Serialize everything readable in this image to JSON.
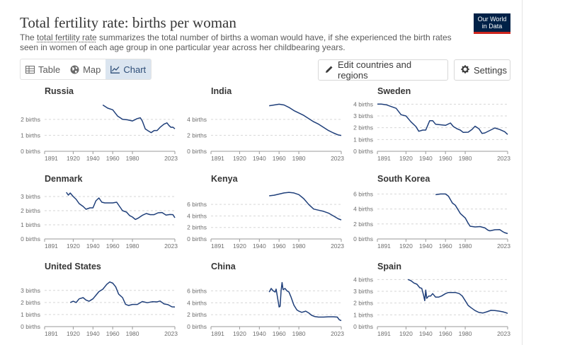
{
  "header": {
    "title": "Total fertility rate: births per woman",
    "subtitle_prefix": "The ",
    "subtitle_link": "total fertility rate",
    "subtitle_rest": " summarizes the total number of births a woman would have, if she experienced the birth rates seen in women of each age group in one particular year across her childbearing years.",
    "logo_line1": "Our World",
    "logo_line2": "in Data"
  },
  "toolbar": {
    "tabs": [
      {
        "label": "Table",
        "icon": "table-icon",
        "active": false
      },
      {
        "label": "Map",
        "icon": "globe-icon",
        "active": false
      },
      {
        "label": "Chart",
        "icon": "line-chart-icon",
        "active": true
      }
    ],
    "edit_label": "Edit countries and regions",
    "settings_label": "Settings"
  },
  "colors": {
    "line": "#1f3f7a",
    "grid": "#d6d6d6",
    "active_tab": "#dbe5f0"
  },
  "chart_data": [
    {
      "type": "line",
      "title": "Russia",
      "x_ticks": [
        "1891",
        "1920",
        "1940",
        "1960",
        "1980",
        "2023"
      ],
      "xlim": [
        1891,
        2023
      ],
      "y_ticks": [
        "0 births",
        "1 births",
        "2 births"
      ],
      "y_tick_values": [
        0,
        1,
        2
      ],
      "ylim": [
        0,
        3.1
      ],
      "x": [
        1950,
        1955,
        1960,
        1965,
        1970,
        1975,
        1980,
        1985,
        1988,
        1990,
        1993,
        1996,
        1999,
        2002,
        2005,
        2008,
        2012,
        2015,
        2017,
        2019,
        2021,
        2023
      ],
      "y": [
        2.9,
        2.7,
        2.6,
        2.2,
        2.0,
        1.97,
        1.9,
        2.05,
        2.1,
        1.9,
        1.4,
        1.28,
        1.17,
        1.3,
        1.3,
        1.5,
        1.7,
        1.78,
        1.62,
        1.5,
        1.51,
        1.41
      ]
    },
    {
      "type": "line",
      "title": "India",
      "x_ticks": [
        "1891",
        "1920",
        "1940",
        "1960",
        "1980",
        "2023"
      ],
      "xlim": [
        1891,
        2023
      ],
      "y_ticks": [
        "0 births",
        "2 births",
        "4 births"
      ],
      "y_tick_values": [
        0,
        2,
        4
      ],
      "ylim": [
        0,
        6.2
      ],
      "x": [
        1950,
        1955,
        1960,
        1965,
        1970,
        1975,
        1980,
        1985,
        1990,
        1995,
        2000,
        2005,
        2010,
        2015,
        2020,
        2023
      ],
      "y": [
        5.7,
        5.8,
        5.9,
        5.8,
        5.5,
        5.1,
        4.8,
        4.5,
        4.1,
        3.7,
        3.4,
        3.0,
        2.6,
        2.3,
        2.05,
        1.98
      ]
    },
    {
      "type": "line",
      "title": "Sweden",
      "x_ticks": [
        "1891",
        "1920",
        "1940",
        "1960",
        "1980",
        "2023"
      ],
      "xlim": [
        1891,
        2023
      ],
      "y_ticks": [
        "0 births",
        "1 births",
        "2 births",
        "3 births",
        "4 births"
      ],
      "y_tick_values": [
        0,
        1,
        2,
        3,
        4
      ],
      "ylim": [
        0,
        4.2
      ],
      "x": [
        1891,
        1895,
        1900,
        1905,
        1910,
        1915,
        1920,
        1925,
        1930,
        1933,
        1937,
        1940,
        1944,
        1947,
        1950,
        1955,
        1960,
        1965,
        1968,
        1972,
        1975,
        1978,
        1983,
        1987,
        1990,
        1994,
        1997,
        2000,
        2005,
        2010,
        2015,
        2020,
        2023
      ],
      "y": [
        4.0,
        4.0,
        3.95,
        3.8,
        3.65,
        3.1,
        3.0,
        2.5,
        2.1,
        1.7,
        1.8,
        1.8,
        2.6,
        2.6,
        2.3,
        2.25,
        2.2,
        2.4,
        2.1,
        1.9,
        1.8,
        1.6,
        1.62,
        1.86,
        2.13,
        1.9,
        1.52,
        1.56,
        1.77,
        1.98,
        1.85,
        1.66,
        1.43
      ]
    },
    {
      "type": "line",
      "title": "Denmark",
      "x_ticks": [
        "1891",
        "1920",
        "1940",
        "1960",
        "1980",
        "2023"
      ],
      "xlim": [
        1891,
        2023
      ],
      "y_ticks": [
        "0 births",
        "1 births",
        "2 births",
        "3 births"
      ],
      "y_tick_values": [
        0,
        1,
        2,
        3
      ],
      "ylim": [
        0,
        3.5
      ],
      "x": [
        1913,
        1915,
        1917,
        1920,
        1923,
        1926,
        1930,
        1933,
        1937,
        1940,
        1943,
        1946,
        1949,
        1952,
        1956,
        1960,
        1964,
        1967,
        1970,
        1974,
        1977,
        1980,
        1983,
        1986,
        1990,
        1994,
        1998,
        2002,
        2006,
        2010,
        2014,
        2018,
        2021,
        2023
      ],
      "y": [
        3.3,
        3.1,
        3.25,
        3.0,
        2.8,
        2.5,
        2.3,
        2.1,
        2.2,
        2.2,
        2.7,
        2.9,
        2.6,
        2.55,
        2.55,
        2.55,
        2.6,
        2.3,
        2.0,
        1.9,
        1.66,
        1.55,
        1.38,
        1.48,
        1.67,
        1.8,
        1.72,
        1.72,
        1.85,
        1.87,
        1.69,
        1.73,
        1.72,
        1.5
      ]
    },
    {
      "type": "line",
      "title": "Kenya",
      "x_ticks": [
        "1891",
        "1920",
        "1940",
        "1960",
        "1980",
        "2023"
      ],
      "xlim": [
        1891,
        2023
      ],
      "y_ticks": [
        "0 births",
        "2 births",
        "4 births",
        "6 births"
      ],
      "y_tick_values": [
        0,
        2,
        4,
        6
      ],
      "ylim": [
        0,
        8.6
      ],
      "x": [
        1950,
        1955,
        1960,
        1965,
        1970,
        1975,
        1980,
        1985,
        1990,
        1995,
        2000,
        2005,
        2010,
        2015,
        2020,
        2023
      ],
      "y": [
        7.5,
        7.6,
        7.8,
        8.0,
        8.1,
        8.0,
        7.7,
        7.0,
        6.0,
        5.2,
        5.0,
        4.8,
        4.5,
        4.0,
        3.5,
        3.3
      ]
    },
    {
      "type": "line",
      "title": "South Korea",
      "x_ticks": [
        "1891",
        "1920",
        "1940",
        "1960",
        "1980",
        "2023"
      ],
      "xlim": [
        1891,
        2023
      ],
      "y_ticks": [
        "0 births",
        "2 births",
        "4 births",
        "6 births"
      ],
      "y_tick_values": [
        0,
        2,
        4,
        6
      ],
      "ylim": [
        0,
        6.6
      ],
      "x": [
        1950,
        1955,
        1960,
        1963,
        1967,
        1970,
        1975,
        1980,
        1983,
        1985,
        1990,
        1995,
        2000,
        2003,
        2005,
        2010,
        2015,
        2018,
        2020,
        2023
      ],
      "y": [
        5.9,
        6.0,
        6.0,
        5.7,
        4.8,
        4.5,
        3.4,
        2.8,
        2.1,
        1.7,
        1.6,
        1.65,
        1.47,
        1.18,
        1.08,
        1.23,
        1.24,
        0.98,
        0.84,
        0.72
      ]
    },
    {
      "type": "line",
      "title": "United States",
      "x_ticks": [
        "1891",
        "1920",
        "1940",
        "1960",
        "1980",
        "2023"
      ],
      "xlim": [
        1891,
        2023
      ],
      "y_ticks": [
        "0 births",
        "1 births",
        "2 births",
        "3 births"
      ],
      "y_tick_values": [
        0,
        1,
        2,
        3
      ],
      "ylim": [
        0,
        4.1
      ],
      "x": [
        1917,
        1920,
        1923,
        1926,
        1930,
        1933,
        1936,
        1940,
        1943,
        1946,
        1950,
        1954,
        1957,
        1960,
        1963,
        1966,
        1970,
        1973,
        1976,
        1980,
        1985,
        1990,
        1995,
        2000,
        2005,
        2008,
        2012,
        2016,
        2020,
        2023
      ],
      "y": [
        2.0,
        2.1,
        2.0,
        2.3,
        2.4,
        2.2,
        2.1,
        2.3,
        2.6,
        2.9,
        3.1,
        3.5,
        3.7,
        3.6,
        3.3,
        2.7,
        2.4,
        1.85,
        1.75,
        1.84,
        1.84,
        2.08,
        1.98,
        2.06,
        2.05,
        2.12,
        1.88,
        1.82,
        1.64,
        1.62
      ]
    },
    {
      "type": "line",
      "title": "China",
      "x_ticks": [
        "1891",
        "1920",
        "1940",
        "1960",
        "1980",
        "2023"
      ],
      "xlim": [
        1891,
        2023
      ],
      "y_ticks": [
        "0 births",
        "2 births",
        "4 births",
        "6 births"
      ],
      "y_tick_values": [
        0,
        2,
        4,
        6
      ],
      "ylim": [
        0,
        8.3
      ],
      "x": [
        1950,
        1952,
        1954,
        1956,
        1957,
        1959,
        1960,
        1961,
        1962,
        1963,
        1964,
        1966,
        1968,
        1970,
        1972,
        1975,
        1978,
        1980,
        1983,
        1987,
        1990,
        1993,
        1996,
        2000,
        2005,
        2010,
        2015,
        2019,
        2021,
        2023
      ],
      "y": [
        5.8,
        6.4,
        6.0,
        5.8,
        6.3,
        4.3,
        3.3,
        3.4,
        6.0,
        7.4,
        6.2,
        6.4,
        6.0,
        5.8,
        5.0,
        3.6,
        2.8,
        2.6,
        2.4,
        2.6,
        2.3,
        1.9,
        1.7,
        1.6,
        1.6,
        1.65,
        1.65,
        1.6,
        1.15,
        1.0
      ]
    },
    {
      "type": "line",
      "title": "Spain",
      "x_ticks": [
        "1891",
        "1920",
        "1940",
        "1960",
        "1980",
        "2023"
      ],
      "xlim": [
        1891,
        2023
      ],
      "y_ticks": [
        "0 births",
        "1 births",
        "2 births",
        "3 births",
        "4 births"
      ],
      "y_tick_values": [
        0,
        1,
        2,
        3,
        4
      ],
      "ylim": [
        0,
        4.2
      ],
      "x": [
        1922,
        1925,
        1928,
        1931,
        1934,
        1936,
        1938,
        1939,
        1940,
        1941,
        1943,
        1945,
        1947,
        1950,
        1953,
        1956,
        1960,
        1963,
        1966,
        1970,
        1974,
        1977,
        1980,
        1983,
        1986,
        1990,
        1994,
        1998,
        2002,
        2006,
        2010,
        2014,
        2018,
        2021,
        2023
      ],
      "y": [
        4.0,
        3.9,
        3.7,
        3.6,
        3.3,
        3.25,
        2.6,
        2.2,
        3.1,
        2.4,
        2.6,
        2.6,
        2.8,
        2.5,
        2.5,
        2.6,
        2.8,
        2.9,
        2.9,
        2.9,
        2.8,
        2.6,
        2.2,
        1.8,
        1.6,
        1.36,
        1.2,
        1.16,
        1.26,
        1.38,
        1.37,
        1.32,
        1.26,
        1.19,
        1.12
      ]
    }
  ]
}
